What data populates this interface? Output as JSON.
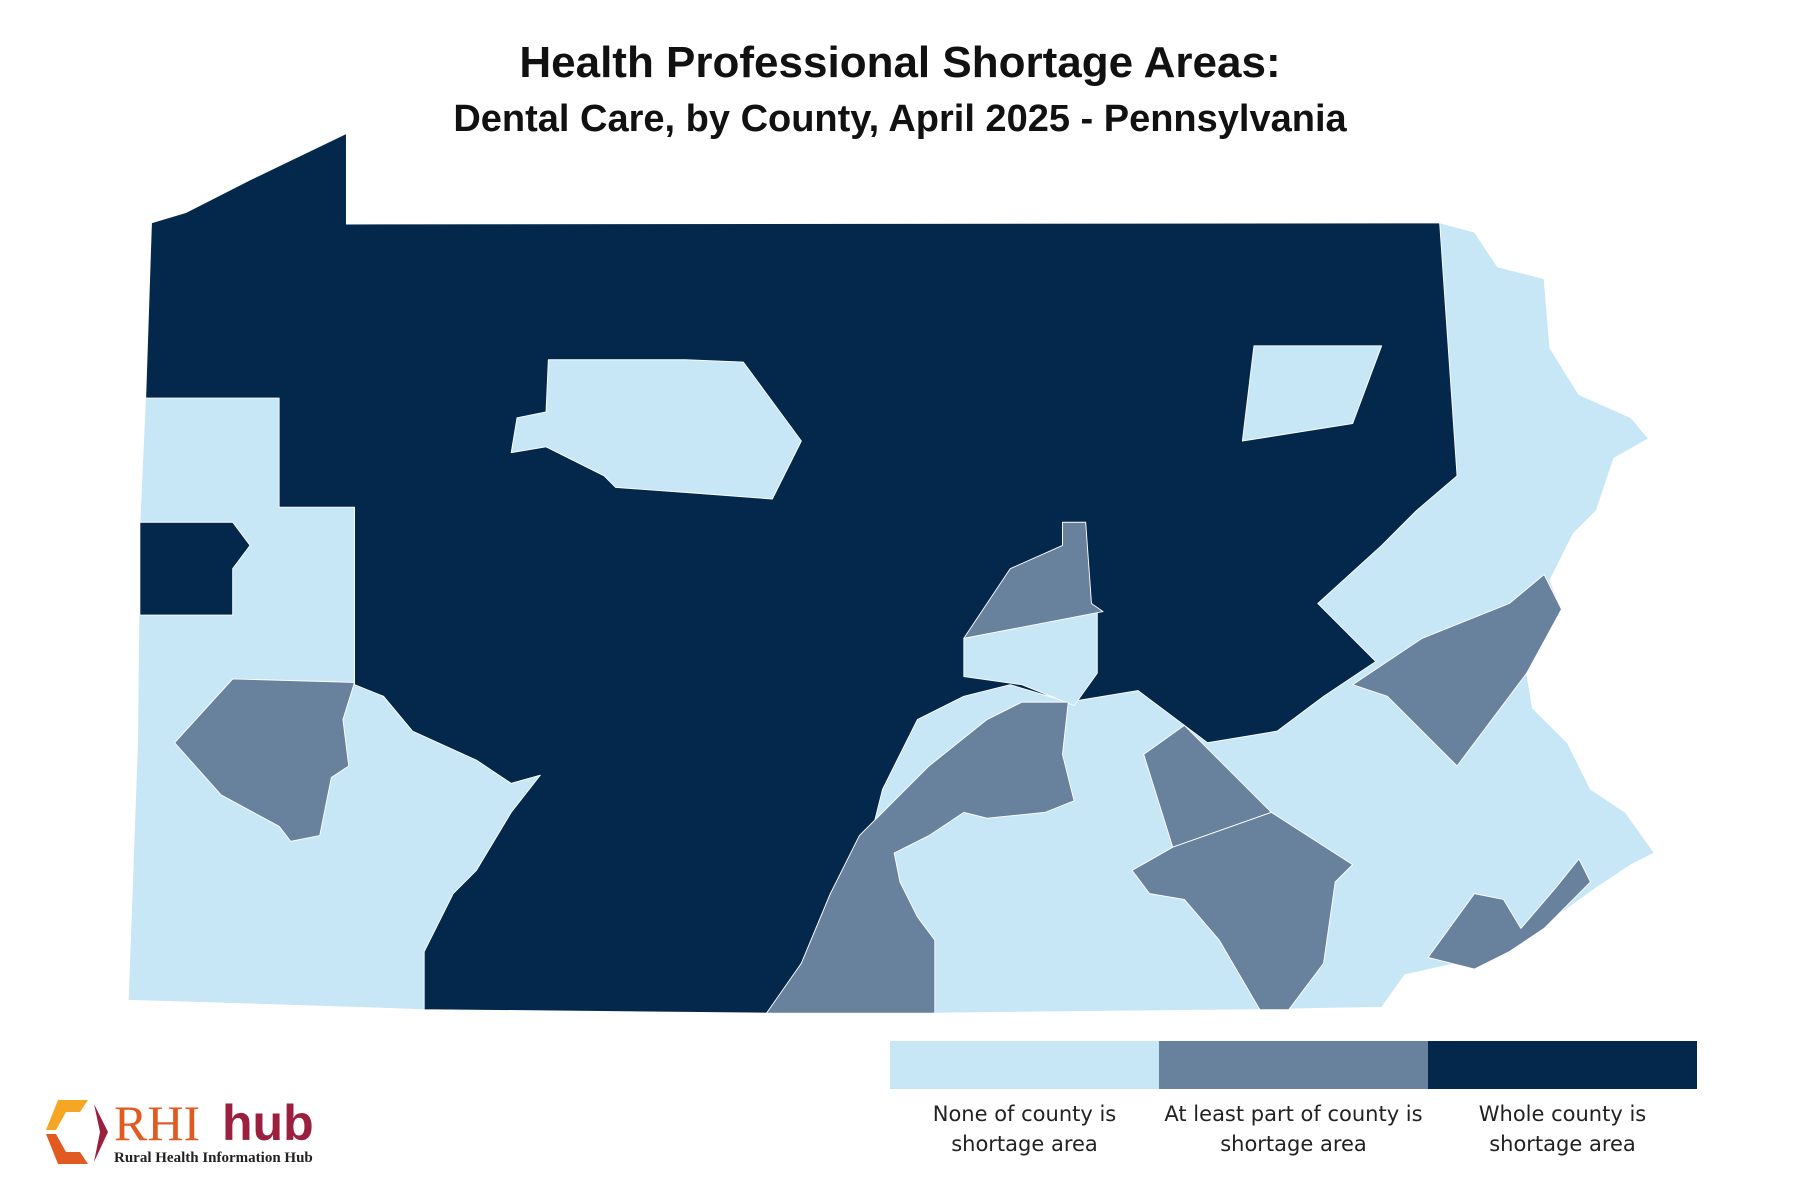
{
  "title": "Health Professional Shortage Areas:",
  "subtitle": "Dental Care, by County, April 2025 - Pennsylvania",
  "colors": {
    "none": "#c7e6f6",
    "part": "#68819c",
    "whole": "#04284b"
  },
  "legend": [
    {
      "line1": "None of county is",
      "line2": "shortage area",
      "color": "#c7e6f6"
    },
    {
      "line1": "At least part of county is",
      "line2": "shortage area",
      "color": "#68819c"
    },
    {
      "line1": "Whole county is",
      "line2": "shortage area",
      "color": "#04284b"
    }
  ],
  "logo": {
    "rhi": "RHI",
    "hub": "hub",
    "tagline": "Rural Health Information Hub"
  }
}
